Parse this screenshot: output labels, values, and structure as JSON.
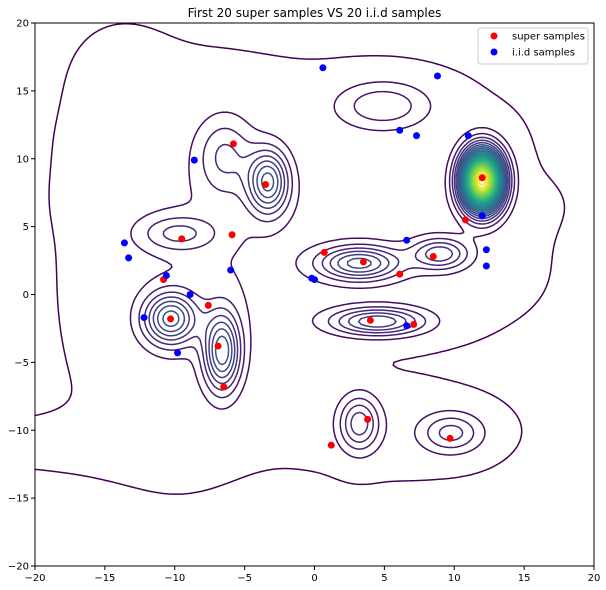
{
  "chart_data": {
    "type": "scatter",
    "title": "First 20 super samples VS 20 i.i.d samples",
    "xlabel": "",
    "ylabel": "",
    "xlim": [
      -20,
      20
    ],
    "ylim": [
      -20,
      20
    ],
    "xticks": [
      -20,
      -15,
      -10,
      -5,
      0,
      5,
      10,
      15,
      20
    ],
    "yticks": [
      -20,
      -15,
      -10,
      -5,
      0,
      5,
      10,
      15,
      20
    ],
    "grid": false,
    "legend": {
      "placement": "top-right",
      "entries": [
        "super samples",
        "i.i.d samples"
      ]
    },
    "background": "density contour plot (viridis colormap)",
    "series": [
      {
        "name": "super samples",
        "color": "#ff0000",
        "x": [
          -5.8,
          -3.5,
          -9.5,
          -5.9,
          12.0,
          10.8,
          -10.8,
          -10.3,
          -7.6,
          -6.9,
          -6.5,
          0.7,
          3.5,
          6.1,
          8.5,
          4.0,
          7.1,
          3.8,
          1.2,
          9.7
        ],
        "y": [
          11.1,
          8.1,
          4.1,
          4.4,
          8.6,
          5.5,
          1.1,
          -1.8,
          -0.8,
          -3.8,
          -6.8,
          3.1,
          2.4,
          1.5,
          2.8,
          -1.9,
          -2.2,
          -9.2,
          -11.1,
          -10.6
        ]
      },
      {
        "name": "i.i.d samples",
        "color": "#0000ff",
        "x": [
          0.6,
          8.8,
          6.1,
          7.3,
          11.0,
          -8.6,
          -13.6,
          -13.3,
          -10.6,
          -8.9,
          -12.2,
          -9.8,
          -6.0,
          -0.2,
          0.0,
          6.6,
          6.6,
          12.0,
          12.3,
          12.3
        ],
        "y": [
          16.7,
          16.1,
          12.1,
          11.7,
          11.7,
          9.9,
          3.8,
          2.7,
          1.4,
          0.0,
          -1.7,
          -4.3,
          1.8,
          1.2,
          1.1,
          4.0,
          -2.3,
          5.8,
          3.3,
          2.1
        ]
      }
    ]
  }
}
